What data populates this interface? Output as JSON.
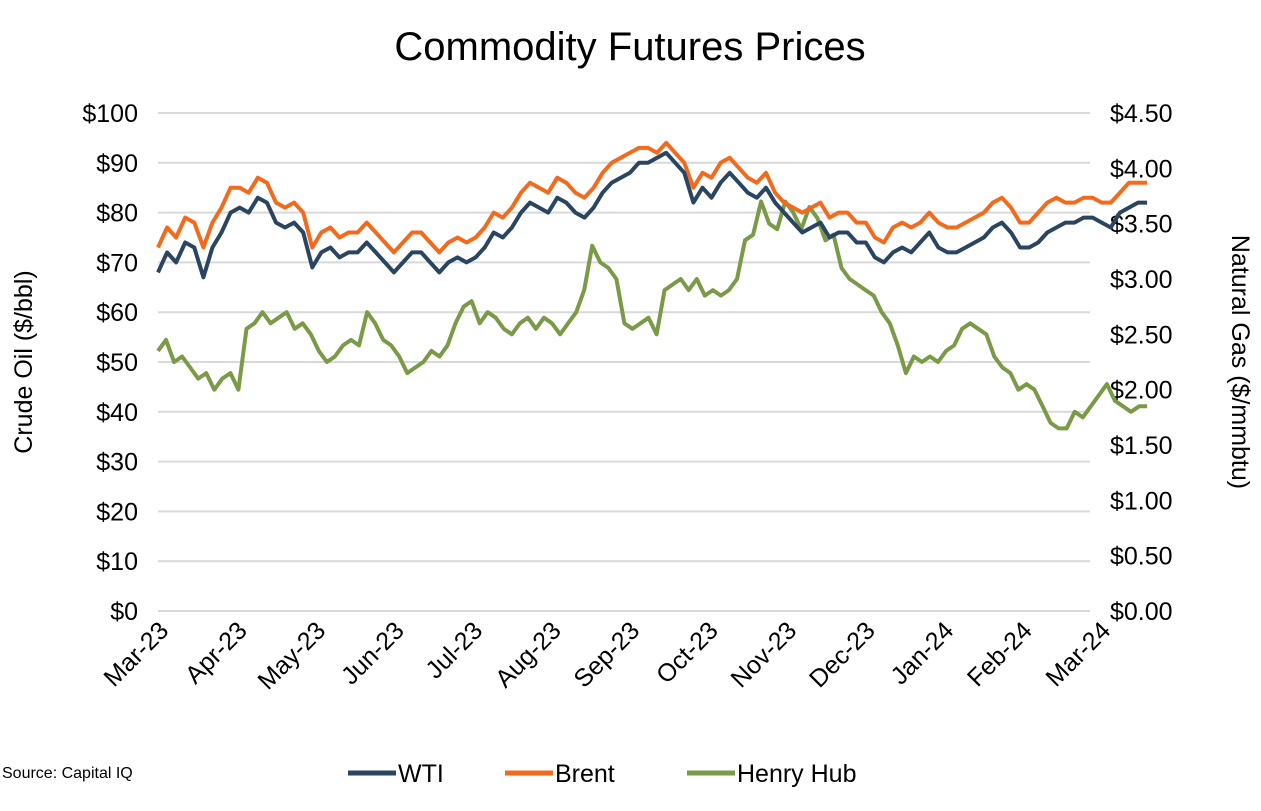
{
  "chart_data": {
    "type": "line",
    "title": "Commodity Futures Prices",
    "ylabel": "Crude Oil ($/bbl)",
    "y2label": "Natural Gas ($/mmbtu)",
    "ylim": [
      0,
      100
    ],
    "y2lim": [
      0,
      4.5
    ],
    "yticks": [
      "$0",
      "$10",
      "$20",
      "$30",
      "$40",
      "$50",
      "$60",
      "$70",
      "$80",
      "$90",
      "$100"
    ],
    "y2ticks": [
      "$0.00",
      "$0.50",
      "$1.00",
      "$1.50",
      "$2.00",
      "$2.50",
      "$3.00",
      "$3.50",
      "$4.00",
      "$4.50"
    ],
    "xticks": [
      "Mar-23",
      "Apr-23",
      "May-23",
      "Jun-23",
      "Jul-23",
      "Aug-23",
      "Sep-23",
      "Oct-23",
      "Nov-23",
      "Dec-23",
      "Jan-24",
      "Feb-24",
      "Mar-24"
    ],
    "x_start_month": 0,
    "x_end_month": 12.6,
    "grid": true,
    "legend_position": "bottom",
    "series": [
      {
        "name": "WTI",
        "axis": "left",
        "color": "#2a4560",
        "values": [
          68,
          72,
          70,
          74,
          73,
          67,
          73,
          76,
          80,
          81,
          80,
          83,
          82,
          78,
          77,
          78,
          76,
          69,
          72,
          73,
          71,
          72,
          72,
          74,
          72,
          70,
          68,
          70,
          72,
          72,
          70,
          68,
          70,
          71,
          70,
          71,
          73,
          76,
          75,
          77,
          80,
          82,
          81,
          80,
          83,
          82,
          80,
          79,
          81,
          84,
          86,
          87,
          88,
          90,
          90,
          91,
          92,
          90,
          88,
          82,
          85,
          83,
          86,
          88,
          86,
          84,
          83,
          85,
          82,
          80,
          78,
          76,
          77,
          78,
          75,
          76,
          76,
          74,
          74,
          71,
          70,
          72,
          73,
          72,
          74,
          76,
          73,
          72,
          72,
          73,
          74,
          75,
          77,
          78,
          76,
          73,
          73,
          74,
          76,
          77,
          78,
          78,
          79,
          79,
          78,
          77,
          80,
          81,
          82,
          82
        ]
      },
      {
        "name": "Brent",
        "axis": "left",
        "color": "#f26b1d",
        "values": [
          73,
          77,
          75,
          79,
          78,
          73,
          78,
          81,
          85,
          85,
          84,
          87,
          86,
          82,
          81,
          82,
          80,
          73,
          76,
          77,
          75,
          76,
          76,
          78,
          76,
          74,
          72,
          74,
          76,
          76,
          74,
          72,
          74,
          75,
          74,
          75,
          77,
          80,
          79,
          81,
          84,
          86,
          85,
          84,
          87,
          86,
          84,
          83,
          85,
          88,
          90,
          91,
          92,
          93,
          93,
          92,
          94,
          92,
          90,
          85,
          88,
          87,
          90,
          91,
          89,
          87,
          86,
          88,
          84,
          82,
          81,
          80,
          81,
          82,
          79,
          80,
          80,
          78,
          78,
          75,
          74,
          77,
          78,
          77,
          78,
          80,
          78,
          77,
          77,
          78,
          79,
          80,
          82,
          83,
          81,
          78,
          78,
          80,
          82,
          83,
          82,
          82,
          83,
          83,
          82,
          82,
          84,
          86,
          86,
          86
        ]
      },
      {
        "name": "Henry Hub",
        "axis": "right",
        "color": "#7a9a48",
        "values": [
          2.35,
          2.45,
          2.25,
          2.3,
          2.2,
          2.1,
          2.15,
          2.0,
          2.1,
          2.15,
          2.0,
          2.55,
          2.6,
          2.7,
          2.6,
          2.65,
          2.7,
          2.55,
          2.6,
          2.5,
          2.35,
          2.25,
          2.3,
          2.4,
          2.45,
          2.4,
          2.7,
          2.6,
          2.45,
          2.4,
          2.3,
          2.15,
          2.2,
          2.25,
          2.35,
          2.3,
          2.4,
          2.6,
          2.75,
          2.8,
          2.6,
          2.7,
          2.65,
          2.55,
          2.5,
          2.6,
          2.65,
          2.55,
          2.65,
          2.6,
          2.5,
          2.6,
          2.7,
          2.9,
          3.3,
          3.15,
          3.1,
          3.0,
          2.6,
          2.55,
          2.6,
          2.65,
          2.5,
          2.9,
          2.95,
          3.0,
          2.9,
          3.0,
          2.85,
          2.9,
          2.85,
          2.9,
          3.0,
          3.35,
          3.4,
          3.7,
          3.5,
          3.45,
          3.7,
          3.6,
          3.45,
          3.65,
          3.55,
          3.35,
          3.4,
          3.1,
          3.0,
          2.95,
          2.9,
          2.85,
          2.7,
          2.6,
          2.4,
          2.15,
          2.3,
          2.25,
          2.3,
          2.25,
          2.35,
          2.4,
          2.55,
          2.6,
          2.55,
          2.5,
          2.3,
          2.2,
          2.15,
          2.0,
          2.05,
          2.0,
          1.85,
          1.7,
          1.65,
          1.65,
          1.8,
          1.75,
          1.85,
          1.95,
          2.05,
          1.9,
          1.85,
          1.8,
          1.85,
          1.85
        ]
      }
    ]
  },
  "source": "Source: Capital IQ"
}
